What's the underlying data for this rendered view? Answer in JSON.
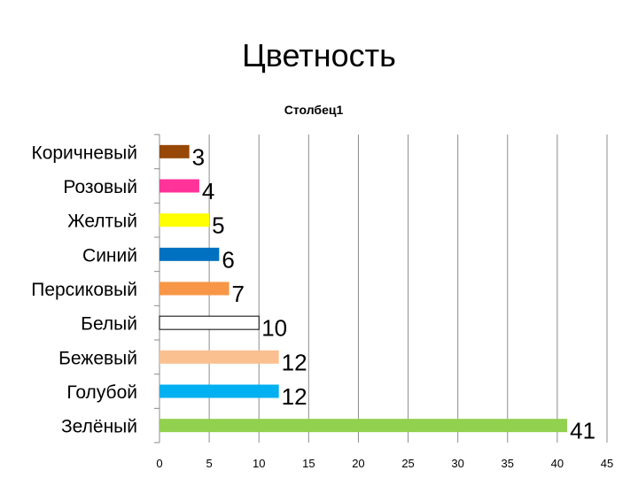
{
  "slide": {
    "title": "Цветность"
  },
  "chart_data": {
    "type": "bar",
    "orientation": "horizontal",
    "title": "Столбец1",
    "xlabel": "",
    "ylabel": "",
    "categories": [
      "Коричневый",
      "Розовый",
      "Желтый",
      "Синий",
      "Персиковый",
      "Белый",
      "Бежевый",
      "Голубой",
      "Зелёный"
    ],
    "values": [
      3,
      4,
      5,
      6,
      7,
      10,
      12,
      12,
      41
    ],
    "colors": [
      "#974806",
      "#ff3399",
      "#ffff00",
      "#0070c0",
      "#f79646",
      "#ffffff",
      "#fac090",
      "#00b0f0",
      "#92d050"
    ],
    "xlim": [
      0,
      45
    ],
    "xticks": [
      0,
      5,
      10,
      15,
      20,
      25,
      30,
      35,
      40,
      45
    ],
    "grid": true,
    "legend": "none",
    "data_labels": true
  }
}
